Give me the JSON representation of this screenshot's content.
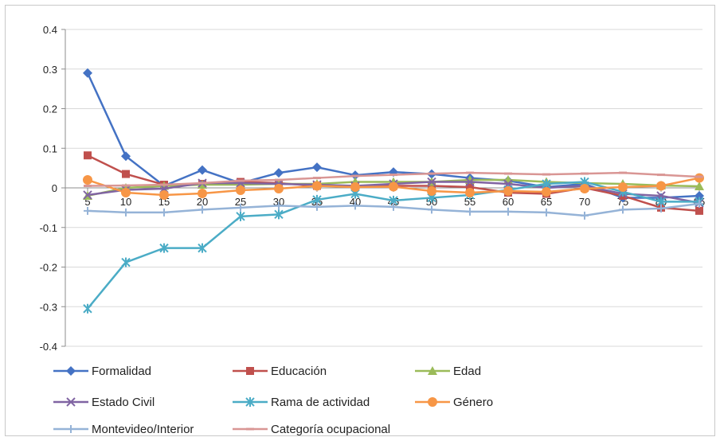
{
  "chart_data": {
    "type": "line",
    "title": "",
    "xlabel": "",
    "ylabel": "",
    "ylim": [
      -0.4,
      0.4
    ],
    "yticks": [
      "0.4",
      "0.3",
      "0.2",
      "0.1",
      "0",
      "-0.1",
      "-0.2",
      "-0.3",
      "-0.4"
    ],
    "ytick_values": [
      0.4,
      0.3,
      0.2,
      0.1,
      0,
      -0.1,
      -0.2,
      -0.3,
      -0.4
    ],
    "grid": true,
    "legend_position": "bottom",
    "categories": [
      "5",
      "10",
      "15",
      "20",
      "25",
      "30",
      "35",
      "40",
      "45",
      "50",
      "55",
      "60",
      "65",
      "70",
      "75",
      "80",
      "85"
    ],
    "series": [
      {
        "name": "Formalidad",
        "color": "#4472C4",
        "marker": "diamond",
        "values": [
          0.29,
          0.08,
          0.005,
          0.045,
          0.012,
          0.038,
          0.052,
          0.032,
          0.04,
          0.035,
          0.025,
          0.018,
          0.002,
          0.01,
          -0.025,
          -0.025,
          -0.02
        ]
      },
      {
        "name": "Educación",
        "color": "#C0504D",
        "marker": "square",
        "values": [
          0.082,
          0.035,
          0.008,
          0.01,
          0.015,
          0.012,
          0.005,
          0.005,
          0.005,
          0.005,
          0.002,
          -0.012,
          -0.015,
          0.0,
          -0.02,
          -0.05,
          -0.058
        ]
      },
      {
        "name": "Edad",
        "color": "#9BBB59",
        "marker": "triangle",
        "values": [
          -0.02,
          0.0,
          0.005,
          0.008,
          0.008,
          0.01,
          0.01,
          0.015,
          0.015,
          0.015,
          0.02,
          0.02,
          0.015,
          0.012,
          0.01,
          0.006,
          0.004
        ]
      },
      {
        "name": "Estado Civil",
        "color": "#8064A2",
        "marker": "x",
        "values": [
          -0.018,
          -0.005,
          -0.002,
          0.012,
          0.012,
          0.01,
          0.008,
          0.005,
          0.01,
          0.015,
          0.015,
          0.01,
          0.0,
          0.005,
          -0.015,
          -0.02,
          -0.038
        ]
      },
      {
        "name": "Rama de actividad",
        "color": "#4BACC6",
        "marker": "star",
        "values": [
          -0.305,
          -0.188,
          -0.152,
          -0.152,
          -0.072,
          -0.067,
          -0.03,
          -0.015,
          -0.032,
          -0.025,
          -0.018,
          -0.005,
          0.01,
          0.015,
          -0.01,
          -0.035,
          -0.035
        ]
      },
      {
        "name": "Género",
        "color": "#F79646",
        "marker": "circle",
        "values": [
          0.02,
          -0.012,
          -0.018,
          -0.014,
          -0.006,
          -0.002,
          0.005,
          0.002,
          0.003,
          -0.008,
          -0.012,
          -0.008,
          -0.01,
          -0.002,
          0.002,
          0.005,
          0.025
        ]
      },
      {
        "name": "Montevideo/Interior",
        "color": "#95B3D7",
        "marker": "plus",
        "values": [
          -0.058,
          -0.062,
          -0.062,
          -0.055,
          -0.05,
          -0.045,
          -0.048,
          -0.045,
          -0.048,
          -0.055,
          -0.06,
          -0.06,
          -0.062,
          -0.07,
          -0.055,
          -0.052,
          -0.04
        ]
      },
      {
        "name": "Categoría ocupacional",
        "color": "#D99694",
        "marker": "dash",
        "values": [
          0.005,
          0.006,
          0.008,
          0.012,
          0.018,
          0.02,
          0.025,
          0.03,
          0.033,
          0.036,
          0.038,
          0.036,
          0.034,
          0.036,
          0.038,
          0.033,
          0.028
        ]
      }
    ]
  }
}
